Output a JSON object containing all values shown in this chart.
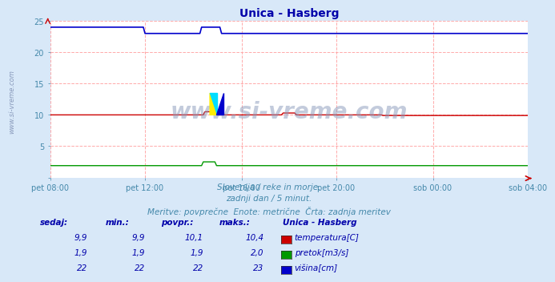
{
  "title": "Unica - Hasberg",
  "title_color": "#0000aa",
  "bg_color": "#d8e8f8",
  "plot_bg_color": "#ffffff",
  "grid_color": "#ffaaaa",
  "tick_color": "#4488aa",
  "watermark": "www.si-vreme.com",
  "watermark_color": "#8899bb",
  "watermark_alpha": 0.5,
  "subtitle_lines": [
    "Slovenija / reke in morje.",
    "zadnji dan / 5 minut.",
    "Meritve: povprečne  Enote: metrične  Črta: zadnja meritev"
  ],
  "subtitle_color": "#4488aa",
  "x_ticks": [
    "pet 08:00",
    "pet 12:00",
    "pet 16:00",
    "pet 20:00",
    "sob 00:00",
    "sob 04:00"
  ],
  "x_tick_frac": [
    0.0,
    0.2,
    0.4,
    0.6,
    0.8,
    1.0
  ],
  "ylim": [
    0,
    25
  ],
  "yticks": [
    0,
    5,
    10,
    15,
    20,
    25
  ],
  "n_points": 288,
  "temp_color": "#cc0000",
  "flow_color": "#009900",
  "height_color": "#0000cc",
  "sidebar_text": "www.si-vreme.com",
  "sidebar_color": "#8899bb",
  "table_headers": [
    "sedaj:",
    "min.:",
    "povpr.:",
    "maks.:"
  ],
  "table_header_color": "#0000aa",
  "table_station": "Unica - Hasberg",
  "table_rows": [
    {
      "label": "temperatura[C]",
      "color": "#cc0000",
      "sedaj": "9,9",
      "min": "9,9",
      "povpr": "10,1",
      "maks": "10,4"
    },
    {
      "label": "pretok[m3/s]",
      "color": "#009900",
      "sedaj": "1,9",
      "min": "1,9",
      "povpr": "1,9",
      "maks": "2,0"
    },
    {
      "label": "višina[cm]",
      "color": "#0000cc",
      "sedaj": "22",
      "min": "22",
      "povpr": "22",
      "maks": "23"
    }
  ]
}
